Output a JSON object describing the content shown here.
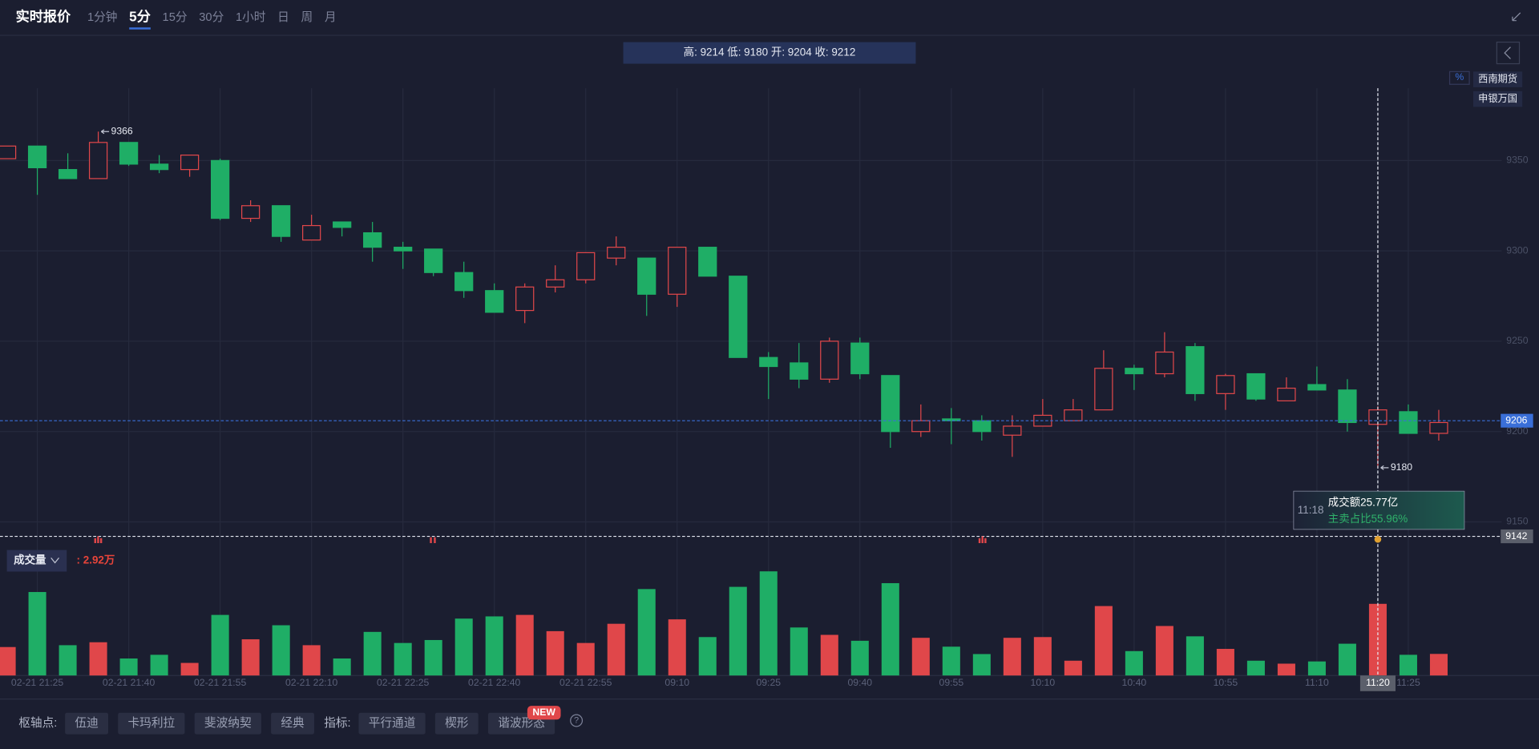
{
  "header": {
    "title": "实时报价",
    "tabs": [
      "1分钟",
      "5分",
      "15分",
      "30分",
      "1小时",
      "日",
      "周",
      "月"
    ],
    "active_tab": 1
  },
  "info_bar": "高: 9214 低: 9180 开: 9204 收: 9212",
  "broker_tags": [
    "西南期货",
    "申银万国"
  ],
  "percent_toggle": "%",
  "tooltip": {
    "time": "11:18",
    "amount": "成交额25.77亿",
    "sell_ratio": "主卖占比55.96%"
  },
  "toolbar": {
    "pivot_label": "枢轴点:",
    "pivots": [
      "伍迪",
      "卡玛利拉",
      "斐波纳契",
      "经典"
    ],
    "indicator_label": "指标:",
    "indicators": [
      "平行通道",
      "楔形",
      "谐波形态"
    ],
    "badge": "NEW",
    "help": "?"
  },
  "chart_data": [
    {
      "type": "candlestick",
      "categories": [
        null,
        "02-21 21:25",
        null,
        null,
        "02-21 21:40",
        null,
        null,
        "02-21 21:55",
        null,
        null,
        "02-21 22:10",
        null,
        null,
        "02-21 22:25",
        null,
        null,
        "02-21 22:40",
        null,
        null,
        "02-21 22:55",
        null,
        null,
        "09:10",
        null,
        null,
        "09:25",
        null,
        null,
        "09:40",
        null,
        null,
        "09:55",
        null,
        null,
        "10:10",
        null,
        null,
        "10:40",
        null,
        null,
        "10:55",
        null,
        null,
        "11:10",
        null,
        "11:20",
        "11:25",
        null
      ],
      "open": [
        9351,
        9358,
        9345,
        9340,
        9360,
        9348,
        9345,
        9350,
        9318,
        9325,
        9306,
        9316,
        9310,
        9302,
        9301,
        9288,
        9278,
        9267,
        9280,
        9284,
        9296,
        9296,
        9276,
        9302,
        9286,
        9241,
        9238,
        9229,
        9249,
        9231,
        9200,
        9207,
        9206,
        9198,
        9203,
        9206,
        9212,
        9235,
        9232,
        9247,
        9221,
        9232,
        9217,
        9226,
        9223,
        9204,
        9211,
        9199
      ],
      "high": [
        9358,
        9358,
        9354,
        9366,
        9360,
        9353,
        9353,
        9351,
        9328,
        9325,
        9320,
        9316,
        9316,
        9305,
        9301,
        9294,
        9282,
        9282,
        9292,
        9299,
        9308,
        9296,
        9302,
        9302,
        9286,
        9244,
        9249,
        9252,
        9252,
        9231,
        9215,
        9213,
        9209,
        9209,
        9218,
        9218,
        9245,
        9237,
        9255,
        9249,
        9232,
        9232,
        9230,
        9236,
        9229,
        9214,
        9215,
        9212
      ],
      "low": [
        9351,
        9331,
        9340,
        9340,
        9347,
        9343,
        9341,
        9317,
        9316,
        9305,
        9306,
        9308,
        9294,
        9290,
        9286,
        9274,
        9266,
        9260,
        9277,
        9282,
        9292,
        9264,
        9269,
        9286,
        9241,
        9218,
        9224,
        9227,
        9229,
        9191,
        9197,
        9193,
        9195,
        9186,
        9203,
        9206,
        9212,
        9223,
        9230,
        9217,
        9212,
        9217,
        9217,
        9223,
        9200,
        9180,
        9199,
        9195
      ],
      "close": [
        9358,
        9346,
        9340,
        9360,
        9348,
        9345,
        9353,
        9318,
        9325,
        9308,
        9314,
        9313,
        9302,
        9300,
        9288,
        9278,
        9266,
        9280,
        9284,
        9299,
        9302,
        9276,
        9302,
        9286,
        9241,
        9236,
        9229,
        9250,
        9232,
        9200,
        9206,
        9206,
        9200,
        9203,
        9209,
        9212,
        9235,
        9232,
        9244,
        9221,
        9231,
        9218,
        9224,
        9223,
        9205,
        9212,
        9199,
        9205
      ],
      "up_color": "#e0474a",
      "down_color": "#1fae66",
      "ylim": [
        9135,
        9390
      ],
      "yticks": [
        9150,
        9200,
        9250,
        9300,
        9350
      ],
      "grid": true,
      "last_price": 9206,
      "crosshair": {
        "category": 45,
        "price": 9142
      }
    },
    {
      "type": "bar",
      "title": "成交量",
      "readout": ": 2.92万",
      "values": [
        3.85,
        11.3,
        4.1,
        4.5,
        2.3,
        2.8,
        1.7,
        8.2,
        4.9,
        6.8,
        4.1,
        2.3,
        5.9,
        4.4,
        4.8,
        7.7,
        8.0,
        8.2,
        6.0,
        4.4,
        7.0,
        11.7,
        7.6,
        5.2,
        12.0,
        14.1,
        6.5,
        5.5,
        4.7,
        12.5,
        5.1,
        3.9,
        2.9,
        5.1,
        5.2,
        2.0,
        9.4,
        3.3,
        6.7,
        5.3,
        3.6,
        2.0,
        1.6,
        1.9,
        4.3,
        9.7,
        2.8,
        2.92
      ],
      "ylim": [
        0,
        15
      ]
    }
  ]
}
